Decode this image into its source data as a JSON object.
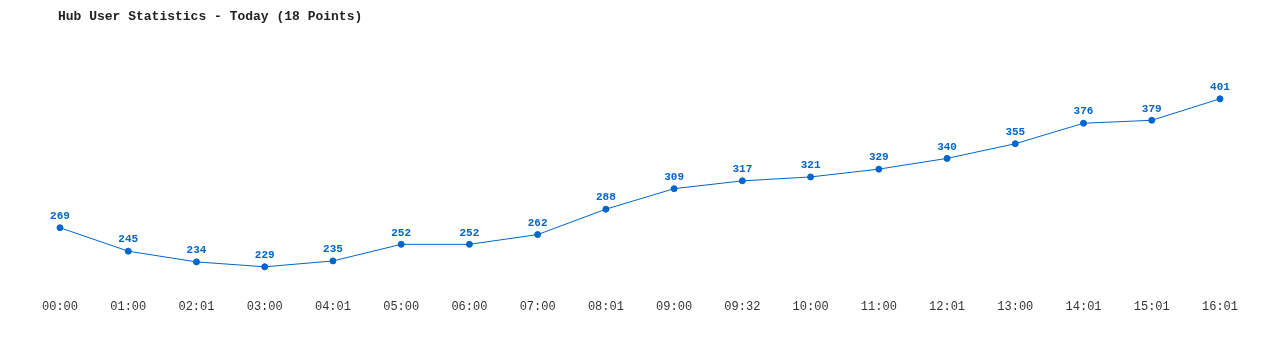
{
  "chart_data": {
    "type": "line",
    "title": "Hub User Statistics - Today (18 Points)",
    "categories": [
      "00:00",
      "01:00",
      "02:01",
      "03:00",
      "04:01",
      "05:00",
      "06:00",
      "07:00",
      "08:01",
      "09:00",
      "09:32",
      "10:00",
      "11:00",
      "12:01",
      "13:00",
      "14:01",
      "15:01",
      "16:01"
    ],
    "series": [
      {
        "color": "#0066cc",
        "values": [
          269,
          245,
          234,
          229,
          235,
          252,
          252,
          262,
          288,
          309,
          317,
          321,
          329,
          340,
          355,
          376,
          379,
          401
        ]
      }
    ],
    "data_labels": true,
    "grid": false,
    "legend": false,
    "marker": "circle",
    "line_style": "solid"
  }
}
